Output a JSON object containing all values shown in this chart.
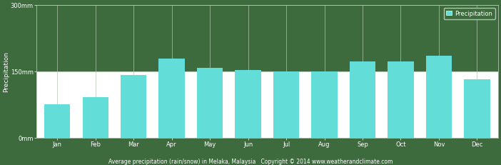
{
  "months": [
    "Jan",
    "Feb",
    "Mar",
    "Apr",
    "May",
    "Jun",
    "Jul",
    "Aug",
    "Sep",
    "Oct",
    "Nov",
    "Dec"
  ],
  "precipitation": [
    75,
    92,
    142,
    178,
    158,
    153,
    150,
    150,
    172,
    172,
    185,
    132
  ],
  "bar_color": "#62ddd8",
  "background_color": "#3d6b3d",
  "plot_upper_color": "#3d6b3d",
  "plot_lower_color": "#ffffff",
  "grid_color": "#b0c4b0",
  "text_color": "#ffffff",
  "ylabel": "Precipitation",
  "yticks": [
    0,
    150,
    300
  ],
  "ytick_labels": [
    "0mm",
    "150mm",
    "300mm"
  ],
  "ylim": [
    0,
    300
  ],
  "title": "Average precipitation (rain/snow) in Melaka, Malaysia   Copyright © 2014 www.weatherandclimate.com",
  "legend_label": "Precipitation",
  "legend_color": "#62ddd8",
  "title_fontsize": 5.5,
  "axis_fontsize": 6.5,
  "tick_fontsize": 6.0
}
